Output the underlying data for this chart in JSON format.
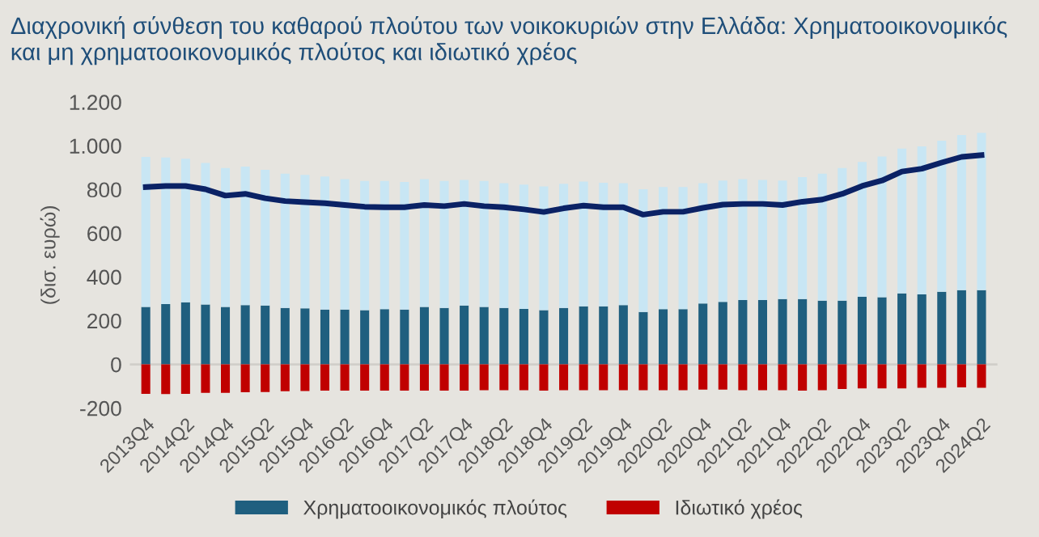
{
  "chart_data": {
    "type": "bar",
    "stacked": true,
    "title": "Διαχρονική σύνθεση του καθαρού πλούτου των νοικοκυριών στην Ελλάδα: Χρηματοοικονομικός και μη χρηματοοικονομικός πλούτος και ιδιωτικό χρέος",
    "ylabel": "(δισ. ευρώ)",
    "categories": [
      "2013Q4",
      null,
      "2014Q2",
      null,
      "2014Q4",
      null,
      "2015Q2",
      null,
      "2015Q4",
      null,
      "2016Q2",
      null,
      "2016Q4",
      null,
      "2017Q2",
      null,
      "2017Q4",
      null,
      "2018Q2",
      null,
      "2018Q4",
      null,
      "2019Q2",
      null,
      "2019Q4",
      null,
      "2020Q2",
      null,
      "2020Q4",
      null,
      "2021Q2",
      null,
      "2021Q4",
      null,
      "2022Q2",
      null,
      "2022Q4",
      null,
      "2023Q2",
      null,
      "2023Q4",
      null,
      "2024Q2"
    ],
    "series": [
      {
        "name": "Χρηματοοικονομικός πλούτος",
        "color": "#1f5f7f",
        "values": [
          263,
          276,
          284,
          274,
          263,
          271,
          269,
          258,
          256,
          251,
          251,
          248,
          253,
          251,
          263,
          258,
          269,
          263,
          258,
          254,
          248,
          258,
          266,
          266,
          271,
          240,
          253,
          253,
          279,
          286,
          294,
          294,
          299,
          299,
          292,
          292,
          309,
          307,
          325,
          320,
          332,
          340,
          340
        ]
      },
      {
        "color": "#c8e6f4",
        "values": [
          686,
          670,
          657,
          647,
          635,
          634,
          621,
          614,
          611,
          608,
          596,
          591,
          586,
          583,
          584,
          581,
          575,
          576,
          571,
          568,
          566,
          568,
          570,
          565,
          558,
          561,
          558,
          558,
          550,
          555,
          553,
          550,
          542,
          558,
          580,
          606,
          617,
          644,
          662,
          677,
          691,
          709,
          719
        ]
      },
      {
        "name": "Ιδιωτικό χρέος",
        "color": "#c00000",
        "values": [
          -135,
          -136,
          -135,
          -130,
          -130,
          -127,
          -126,
          -123,
          -122,
          -120,
          -120,
          -120,
          -120,
          -120,
          -120,
          -120,
          -120,
          -118,
          -118,
          -118,
          -120,
          -118,
          -118,
          -118,
          -118,
          -118,
          -118,
          -118,
          -115,
          -115,
          -118,
          -118,
          -118,
          -120,
          -118,
          -113,
          -110,
          -110,
          -110,
          -107,
          -107,
          -105,
          -107
        ]
      },
      {
        "type": "line",
        "color": "#0b2265",
        "values": [
          811,
          816,
          816,
          801,
          772,
          780,
          760,
          747,
          742,
          737,
          729,
          721,
          719,
          719,
          729,
          724,
          734,
          724,
          719,
          709,
          697,
          714,
          726,
          719,
          719,
          685,
          698,
          698,
          716,
          731,
          734,
          734,
          729,
          744,
          754,
          780,
          816,
          841,
          882,
          895,
          923,
          949,
          957
        ]
      }
    ],
    "ylim": [
      -200,
      1200
    ],
    "yticks": [
      {
        "value": -200,
        "label": "-200"
      },
      0,
      200,
      400,
      600,
      800,
      {
        "value": 1000,
        "label": "1.000"
      },
      {
        "value": 1200,
        "label": "1.200"
      }
    ],
    "ref_lines": [
      {
        "axis": "y",
        "value": 0,
        "color": "#d0cec9"
      }
    ],
    "legend": "bottom"
  }
}
